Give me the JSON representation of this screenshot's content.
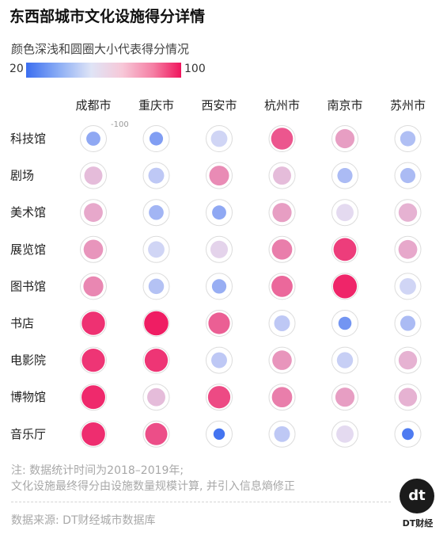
{
  "title": "东西部城市文化设施得分详情",
  "legend": {
    "description": "颜色深浅和圆圈大小代表得分情况",
    "min": "20",
    "max": "100",
    "colors": {
      "low": "#3b6ef0",
      "mid": "#e3e2f6",
      "high": "#f0155d"
    }
  },
  "chart_data": {
    "type": "heatmap",
    "title": "东西部城市文化设施得分详情",
    "columns": [
      "成都市",
      "重庆市",
      "西安市",
      "杭州市",
      "南京市",
      "苏州市"
    ],
    "rows": [
      "科技馆",
      "剧场",
      "美术馆",
      "展览馆",
      "图书馆",
      "书店",
      "电影院",
      "博物馆",
      "音乐厅"
    ],
    "value_range": [
      20,
      100
    ],
    "reference_circle_label": "100",
    "values": [
      [
        38,
        35,
        52,
        84,
        68,
        45
      ],
      [
        62,
        48,
        72,
        62,
        44,
        44
      ],
      [
        66,
        42,
        38,
        68,
        57,
        64
      ],
      [
        70,
        52,
        58,
        75,
        90,
        66
      ],
      [
        73,
        46,
        40,
        80,
        96,
        52
      ],
      [
        93,
        98,
        82,
        48,
        32,
        44
      ],
      [
        92,
        92,
        48,
        70,
        50,
        64
      ],
      [
        95,
        62,
        87,
        75,
        68,
        64
      ],
      [
        94,
        86,
        22,
        48,
        57,
        24
      ]
    ]
  },
  "notes": {
    "line1": "注: 数据统计时间为2018–2019年;",
    "line2": "文化设施最终得分由设施数量规模计算, 并引入信息熵修正",
    "source": "数据来源: DT财经城市数据库"
  },
  "logo": {
    "mark": "dt",
    "name": "DT财经"
  }
}
